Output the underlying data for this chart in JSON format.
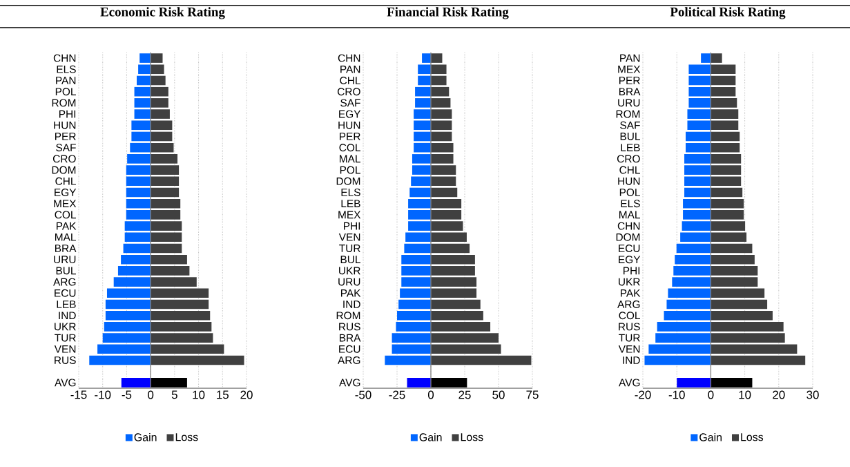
{
  "chart_data": [
    {
      "type": "bar",
      "orientation": "horizontal",
      "stacked": true,
      "title": "Economic Risk Rating",
      "categories": [
        "CHN",
        "ELS",
        "PAN",
        "POL",
        "ROM",
        "PHI",
        "HUN",
        "PER",
        "SAF",
        "CRO",
        "DOM",
        "CHL",
        "EGY",
        "MEX",
        "COL",
        "PAK",
        "MAL",
        "BRA",
        "URU",
        "BUL",
        "ARG",
        "ECU",
        "LEB",
        "IND",
        "UKR",
        "TUR",
        "VEN",
        "RUS",
        null,
        "AVG"
      ],
      "series": [
        {
          "name": "Gain",
          "color": "#0066ff",
          "colors": [
            "#0066ff",
            "#0066ff",
            "#0066ff",
            "#0066ff",
            "#0066ff",
            "#0066ff",
            "#0066ff",
            "#0066ff",
            "#0066ff",
            "#0066ff",
            "#0066ff",
            "#0066ff",
            "#0066ff",
            "#0066ff",
            "#0066ff",
            "#0066ff",
            "#0066ff",
            "#0066ff",
            "#0066ff",
            "#0066ff",
            "#0066ff",
            "#0066ff",
            "#0066ff",
            "#0066ff",
            "#0066ff",
            "#0066ff",
            "#0066ff",
            "#0066ff",
            null,
            "#0000ff"
          ],
          "values": [
            -2.3,
            -2.6,
            -2.9,
            -3.4,
            -3.4,
            -3.4,
            -4.0,
            -4.0,
            -4.3,
            -4.9,
            -5.1,
            -5.1,
            -5.1,
            -5.1,
            -5.1,
            -5.4,
            -5.4,
            -5.7,
            -6.2,
            -6.8,
            -7.7,
            -9.1,
            -9.4,
            -9.4,
            -9.7,
            -10.0,
            -11.1,
            -12.8,
            null,
            -6.1
          ]
        },
        {
          "name": "Loss",
          "color": "#404040",
          "colors": [
            "#404040",
            "#404040",
            "#404040",
            "#404040",
            "#404040",
            "#404040",
            "#404040",
            "#404040",
            "#404040",
            "#404040",
            "#404040",
            "#404040",
            "#404040",
            "#404040",
            "#404040",
            "#404040",
            "#404040",
            "#404040",
            "#404040",
            "#404040",
            "#404040",
            "#404040",
            "#404040",
            "#404040",
            "#404040",
            "#404040",
            "#404040",
            "#404040",
            null,
            "#000000"
          ],
          "values": [
            2.5,
            2.8,
            3.1,
            3.7,
            3.7,
            4.0,
            4.5,
            4.5,
            4.8,
            5.6,
            5.9,
            5.9,
            5.9,
            6.2,
            6.2,
            6.5,
            6.5,
            6.5,
            7.6,
            8.1,
            9.6,
            12.1,
            12.1,
            12.4,
            12.7,
            13.0,
            15.3,
            19.5,
            null,
            7.6
          ]
        }
      ],
      "xlim": [
        -15,
        20
      ],
      "xticks": [
        -15,
        -10,
        -5,
        0,
        5,
        10,
        15,
        20
      ],
      "grid": "x",
      "legend": "bottom",
      "ref_lines": [
        {
          "axis": "x",
          "value": 0,
          "color": "#808080"
        }
      ]
    },
    {
      "type": "bar",
      "orientation": "horizontal",
      "stacked": true,
      "title": "Financial Risk Rating",
      "categories": [
        "CHN",
        "PAN",
        "CHL",
        "CRO",
        "SAF",
        "EGY",
        "HUN",
        "PER",
        "COL",
        "MAL",
        "POL",
        "DOM",
        "ELS",
        "LEB",
        "MEX",
        "PHI",
        "VEN",
        "TUR",
        "BUL",
        "UKR",
        "URU",
        "PAK",
        "IND",
        "ROM",
        "RUS",
        "BRA",
        "ECU",
        "ARG",
        null,
        "AVG"
      ],
      "series": [
        {
          "name": "Gain",
          "color": "#0066ff",
          "colors": [
            "#0066ff",
            "#0066ff",
            "#0066ff",
            "#0066ff",
            "#0066ff",
            "#0066ff",
            "#0066ff",
            "#0066ff",
            "#0066ff",
            "#0066ff",
            "#0066ff",
            "#0066ff",
            "#0066ff",
            "#0066ff",
            "#0066ff",
            "#0066ff",
            "#0066ff",
            "#0066ff",
            "#0066ff",
            "#0066ff",
            "#0066ff",
            "#0066ff",
            "#0066ff",
            "#0066ff",
            "#0066ff",
            "#0066ff",
            "#0066ff",
            "#0066ff",
            null,
            "#0000ff"
          ],
          "values": [
            -6.6,
            -9.6,
            -9.6,
            -11.7,
            -11.7,
            -12.7,
            -12.7,
            -12.7,
            -12.7,
            -13.8,
            -13.8,
            -14.7,
            -15.7,
            -16.8,
            -16.8,
            -16.8,
            -18.8,
            -19.7,
            -21.8,
            -21.8,
            -21.8,
            -22.9,
            -23.9,
            -25.0,
            -25.8,
            -28.8,
            -28.8,
            -34.0,
            null,
            -17.6
          ]
        },
        {
          "name": "Loss",
          "color": "#404040",
          "colors": [
            "#404040",
            "#404040",
            "#404040",
            "#404040",
            "#404040",
            "#404040",
            "#404040",
            "#404040",
            "#404040",
            "#404040",
            "#404040",
            "#404040",
            "#404040",
            "#404040",
            "#404040",
            "#404040",
            "#404040",
            "#404040",
            "#404040",
            "#404040",
            "#404040",
            "#404040",
            "#404040",
            "#404040",
            "#404040",
            "#404040",
            "#404040",
            "#404040",
            null,
            "#000000"
          ],
          "values": [
            8.4,
            11.5,
            11.5,
            13.4,
            14.5,
            15.5,
            15.5,
            15.5,
            16.6,
            16.6,
            18.5,
            18.5,
            19.5,
            22.5,
            22.5,
            23.7,
            26.5,
            28.6,
            32.6,
            32.6,
            33.7,
            33.7,
            36.6,
            38.7,
            43.9,
            50.0,
            51.8,
            74.2,
            null,
            26.7
          ]
        }
      ],
      "xlim": [
        -50,
        75
      ],
      "xticks": [
        -50,
        -25,
        0,
        25,
        50,
        75
      ],
      "grid": "x",
      "legend": "bottom",
      "ref_lines": [
        {
          "axis": "x",
          "value": 0,
          "color": "#808080"
        }
      ]
    },
    {
      "type": "bar",
      "orientation": "horizontal",
      "stacked": true,
      "title": "Political Risk Rating",
      "categories": [
        "PAN",
        "MEX",
        "PER",
        "BRA",
        "URU",
        "ROM",
        "SAF",
        "BUL",
        "LEB",
        "CRO",
        "CHL",
        "HUN",
        "POL",
        "ELS",
        "MAL",
        "CHN",
        "DOM",
        "ECU",
        "EGY",
        "PHI",
        "UKR",
        "PAK",
        "ARG",
        "COL",
        "RUS",
        "TUR",
        "VEN",
        "IND",
        null,
        "AVG"
      ],
      "series": [
        {
          "name": "Gain",
          "color": "#0066ff",
          "colors": [
            "#0066ff",
            "#0066ff",
            "#0066ff",
            "#0066ff",
            "#0066ff",
            "#0066ff",
            "#0066ff",
            "#0066ff",
            "#0066ff",
            "#0066ff",
            "#0066ff",
            "#0066ff",
            "#0066ff",
            "#0066ff",
            "#0066ff",
            "#0066ff",
            "#0066ff",
            "#0066ff",
            "#0066ff",
            "#0066ff",
            "#0066ff",
            "#0066ff",
            "#0066ff",
            "#0066ff",
            "#0066ff",
            "#0066ff",
            "#0066ff",
            "#0066ff",
            null,
            "#0000ff"
          ],
          "values": [
            -2.9,
            -6.5,
            -6.5,
            -6.5,
            -6.5,
            -6.9,
            -6.9,
            -7.4,
            -7.4,
            -7.8,
            -7.8,
            -7.8,
            -7.8,
            -8.2,
            -8.2,
            -8.5,
            -9.0,
            -10.1,
            -10.6,
            -11.0,
            -11.4,
            -12.6,
            -13.0,
            -13.8,
            -15.8,
            -16.3,
            -18.3,
            -19.5,
            null,
            -10.0
          ]
        },
        {
          "name": "Loss",
          "color": "#404040",
          "colors": [
            "#404040",
            "#404040",
            "#404040",
            "#404040",
            "#404040",
            "#404040",
            "#404040",
            "#404040",
            "#404040",
            "#404040",
            "#404040",
            "#404040",
            "#404040",
            "#404040",
            "#404040",
            "#404040",
            "#404040",
            "#404040",
            "#404040",
            "#404040",
            "#404040",
            "#404040",
            "#404040",
            "#404040",
            "#404040",
            "#404040",
            "#404040",
            "#404040",
            null,
            "#000000"
          ],
          "values": [
            3.3,
            7.3,
            7.3,
            7.3,
            7.7,
            8.1,
            8.1,
            8.5,
            8.5,
            8.9,
            8.9,
            8.9,
            9.3,
            9.7,
            9.7,
            10.1,
            10.5,
            12.2,
            12.9,
            13.8,
            13.8,
            15.8,
            16.6,
            18.2,
            21.4,
            21.8,
            25.4,
            27.8,
            null,
            12.2
          ]
        }
      ],
      "xlim": [
        -20,
        30
      ],
      "xticks": [
        -20,
        -10,
        0,
        10,
        20,
        30
      ],
      "grid": "x",
      "legend": "bottom",
      "ref_lines": [
        {
          "axis": "x",
          "value": 0,
          "color": "#808080"
        }
      ]
    }
  ]
}
